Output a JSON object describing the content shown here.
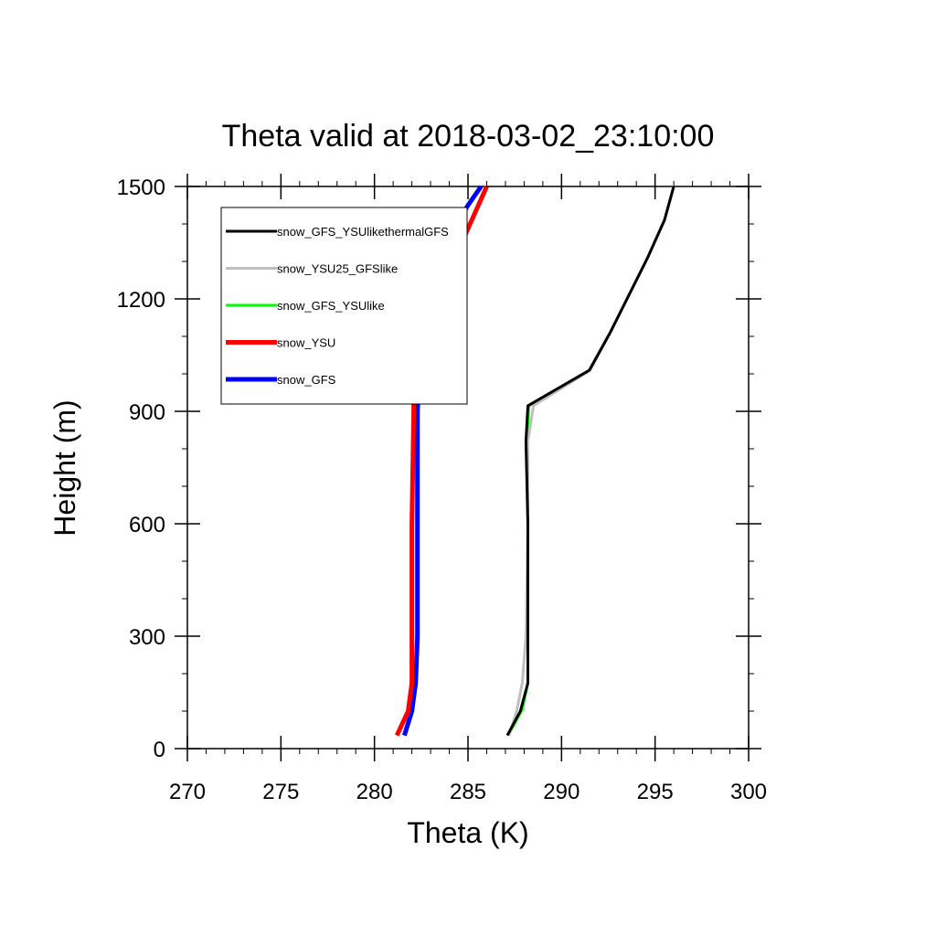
{
  "chart_data": {
    "type": "line",
    "title": "Theta valid at 2018-03-02_23:10:00",
    "xlabel": "Theta (K)",
    "ylabel": "Height (m)",
    "xlim": [
      270,
      300
    ],
    "ylim": [
      0,
      1500
    ],
    "xticks": [
      270,
      275,
      280,
      285,
      290,
      295,
      300
    ],
    "yticks": [
      0,
      300,
      600,
      900,
      1200,
      1500
    ],
    "xtick_labels": [
      "270",
      "275",
      "280",
      "285",
      "290",
      "295",
      "300"
    ],
    "ytick_labels": [
      "0",
      "300",
      "600",
      "900",
      "1200",
      "1500"
    ],
    "x_minor_step": 1,
    "y_minor_step": 100,
    "grid": false,
    "legend_position": "top-left",
    "series": [
      {
        "name": "snow_GFS_YSUlikethermalGFS",
        "color": "#000000",
        "width": 3,
        "points": [
          [
            287.1,
            35
          ],
          [
            287.8,
            100
          ],
          [
            288.2,
            175
          ],
          [
            288.2,
            300
          ],
          [
            288.2,
            600
          ],
          [
            288.1,
            820
          ],
          [
            288.2,
            915
          ],
          [
            291.5,
            1010
          ],
          [
            292.6,
            1110
          ],
          [
            293.6,
            1210
          ],
          [
            294.6,
            1310
          ],
          [
            295.5,
            1410
          ],
          [
            296.0,
            1500
          ]
        ]
      },
      {
        "name": "snow_YSU25_GFSlike",
        "color": "#bfbfbf",
        "width": 3,
        "points": [
          [
            287.2,
            35
          ],
          [
            287.6,
            100
          ],
          [
            287.9,
            175
          ],
          [
            288.1,
            300
          ],
          [
            288.2,
            600
          ],
          [
            288.2,
            820
          ],
          [
            288.5,
            915
          ],
          [
            291.4,
            1005
          ],
          [
            292.6,
            1110
          ],
          [
            293.6,
            1210
          ],
          [
            294.6,
            1310
          ],
          [
            295.5,
            1410
          ],
          [
            296.0,
            1500
          ]
        ]
      },
      {
        "name": "snow_GFS_YSUlike",
        "color": "#00ff00",
        "width": 3,
        "points": [
          [
            287.15,
            35
          ],
          [
            287.9,
            105
          ],
          [
            288.2,
            175
          ],
          [
            288.2,
            300
          ],
          [
            288.2,
            600
          ],
          [
            288.15,
            820
          ],
          [
            288.25,
            915
          ],
          [
            291.5,
            1010
          ],
          [
            292.6,
            1110
          ],
          [
            293.6,
            1210
          ],
          [
            294.6,
            1310
          ],
          [
            295.5,
            1410
          ],
          [
            296.0,
            1500
          ]
        ]
      },
      {
        "name": "snow_YSU",
        "color": "#ff0000",
        "width": 5,
        "points": [
          [
            281.2,
            35
          ],
          [
            281.8,
            100
          ],
          [
            282.0,
            175
          ],
          [
            282.0,
            300
          ],
          [
            282.0,
            600
          ],
          [
            282.1,
            900
          ],
          [
            282.1,
            1000
          ],
          [
            282.5,
            1090
          ],
          [
            283.4,
            1200
          ],
          [
            284.3,
            1310
          ],
          [
            285.2,
            1410
          ],
          [
            286.0,
            1500
          ]
        ]
      },
      {
        "name": "snow_GFS",
        "color": "#0000ff",
        "width": 5,
        "points": [
          [
            281.6,
            35
          ],
          [
            282.0,
            100
          ],
          [
            282.2,
            175
          ],
          [
            282.3,
            300
          ],
          [
            282.3,
            600
          ],
          [
            282.3,
            900
          ],
          [
            282.4,
            1000
          ],
          [
            282.6,
            1100
          ],
          [
            283.0,
            1200
          ],
          [
            283.4,
            1300
          ],
          [
            284.4,
            1400
          ],
          [
            285.0,
            1450
          ],
          [
            285.7,
            1500
          ]
        ]
      }
    ]
  }
}
